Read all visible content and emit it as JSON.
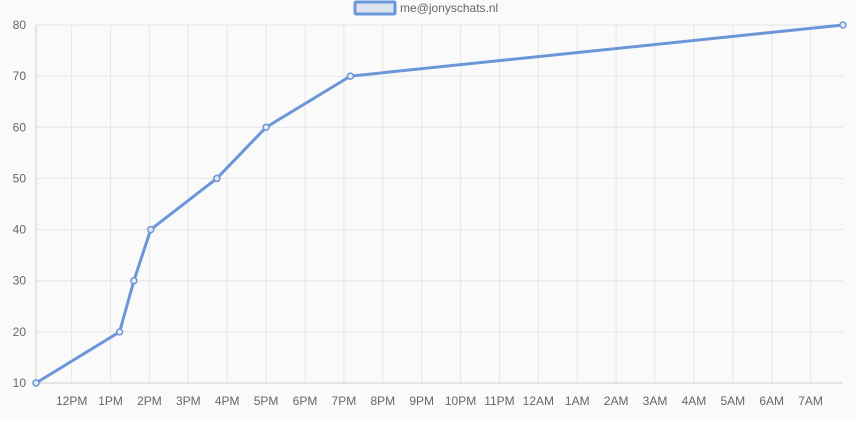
{
  "chart_data": {
    "type": "line",
    "legend": {
      "label": "me@jonyschats.nl",
      "position": "top-center"
    },
    "grid": true,
    "colors": {
      "line": "#6b97d9",
      "legend_fill": "#dde3ec",
      "grid": "#e6e6e6",
      "axis": "#cfcfcf",
      "text": "#666666"
    },
    "y_axis": {
      "min": 10,
      "max": 80,
      "ticks": [
        "10",
        "20",
        "30",
        "40",
        "50",
        "60",
        "70",
        "80"
      ]
    },
    "x_axis": {
      "ticks": [
        "12PM",
        "1PM",
        "2PM",
        "3PM",
        "4PM",
        "5PM",
        "6PM",
        "7PM",
        "8PM",
        "9PM",
        "10PM",
        "11PM",
        "12AM",
        "1AM",
        "2AM",
        "3AM",
        "4AM",
        "5AM",
        "6AM",
        "7AM"
      ]
    },
    "series": [
      {
        "name": "me@jonyschats.nl",
        "points": [
          {
            "x": "11:05",
            "y": 10
          },
          {
            "x": "13:14",
            "y": 20
          },
          {
            "x": "13:36",
            "y": 30
          },
          {
            "x": "14:02",
            "y": 40
          },
          {
            "x": "15:44",
            "y": 50
          },
          {
            "x": "17:00",
            "y": 60
          },
          {
            "x": "19:10",
            "y": 70
          },
          {
            "x": "07:50",
            "y": 80
          }
        ]
      }
    ]
  }
}
